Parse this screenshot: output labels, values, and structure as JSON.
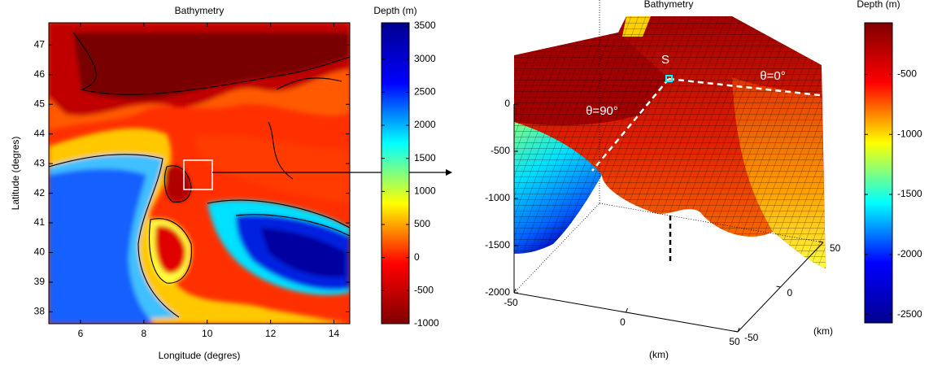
{
  "chart_data": [
    {
      "type": "heatmap",
      "title": "Bathymetry",
      "xlabel": "Longitude (degres)",
      "ylabel": "Latitude (degres)",
      "xlim": [
        5.0,
        14.5
      ],
      "xticks": [
        6,
        8,
        10,
        12,
        14
      ],
      "ylim": [
        37.6,
        47.75
      ],
      "yticks": [
        38,
        39,
        40,
        41,
        42,
        43,
        44,
        45,
        46,
        47
      ],
      "colorbar": {
        "label": "Depth (m)",
        "lim": [
          -1000,
          3550
        ],
        "ticks": [
          -1000,
          -500,
          0,
          500,
          1000,
          1500,
          2000,
          2500,
          3000,
          3500
        ],
        "colors": [
          "#800000",
          "#ff0000",
          "#ffff00",
          "#00ffff",
          "#0000ff",
          "#00008f"
        ]
      }
    },
    {
      "type": "surface",
      "title": "Bathymetry",
      "xlabel": "(km)",
      "ylabel": "(km)",
      "xlim": [
        -50,
        50
      ],
      "xticks": [
        -50,
        0,
        50
      ],
      "ylim": [
        -50,
        50
      ],
      "yticks": [
        -50,
        0,
        50
      ],
      "zlim": [
        -2000,
        0
      ],
      "zticks": [
        -2000,
        -1500,
        -1000,
        -500,
        0
      ],
      "annotations": [
        "S",
        "θ=0°",
        "θ=90°"
      ],
      "colorbar": {
        "label": "Depth (m)",
        "lim": [
          -2570,
          -70
        ],
        "ticks": [
          -2500,
          -2000,
          -1500,
          -1000,
          -500
        ],
        "colors": [
          "#00008f",
          "#0000ff",
          "#00ffff",
          "#ffff00",
          "#ff0000",
          "#800000"
        ]
      }
    }
  ]
}
